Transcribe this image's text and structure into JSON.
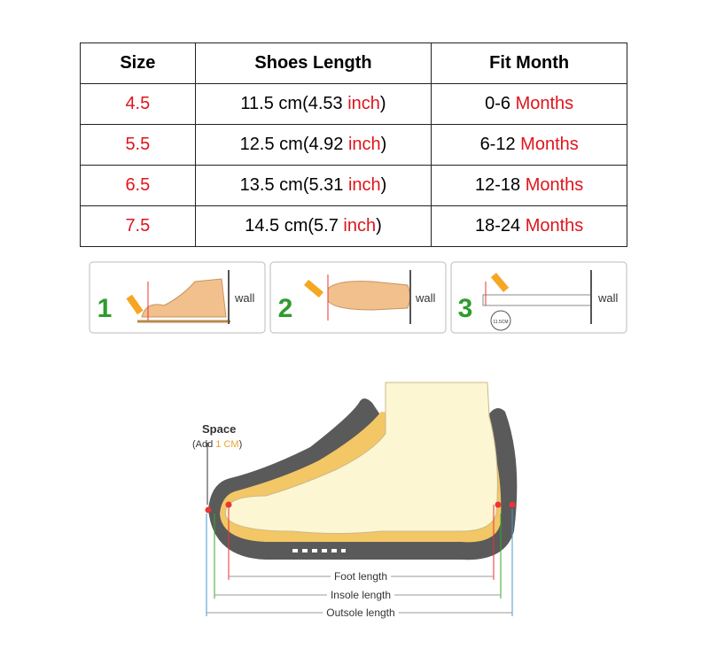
{
  "table": {
    "header": [
      "Size",
      "Shoes Length",
      "Fit Month"
    ],
    "rows": [
      {
        "size": "4.5",
        "length": [
          "11.5 cm(4.53 ",
          "inch",
          ")"
        ],
        "fit": [
          "0-6 ",
          "Months"
        ]
      },
      {
        "size": "5.5",
        "length": [
          "12.5 cm(4.92 ",
          "inch",
          ")"
        ],
        "fit": [
          "6-12 ",
          "Months"
        ]
      },
      {
        "size": "6.5",
        "length": [
          "13.5 cm(5.31 ",
          "inch",
          ")"
        ],
        "fit": [
          "12-18 ",
          "Months"
        ]
      },
      {
        "size": "7.5",
        "length": [
          "14.5 cm(5.7 ",
          "inch",
          ")"
        ],
        "fit": [
          "18-24 ",
          "Months"
        ]
      }
    ]
  },
  "steps": [
    {
      "number": "1",
      "label": "wall"
    },
    {
      "number": "2",
      "label": "wall"
    },
    {
      "number": "3",
      "label": "wall",
      "ruler": "11.5CM"
    }
  ],
  "diagram": {
    "space": "Space",
    "note": [
      "(Add ",
      "1 CM",
      ")"
    ],
    "lengths": [
      "Foot length",
      "Insole length",
      "Outsole length"
    ]
  }
}
